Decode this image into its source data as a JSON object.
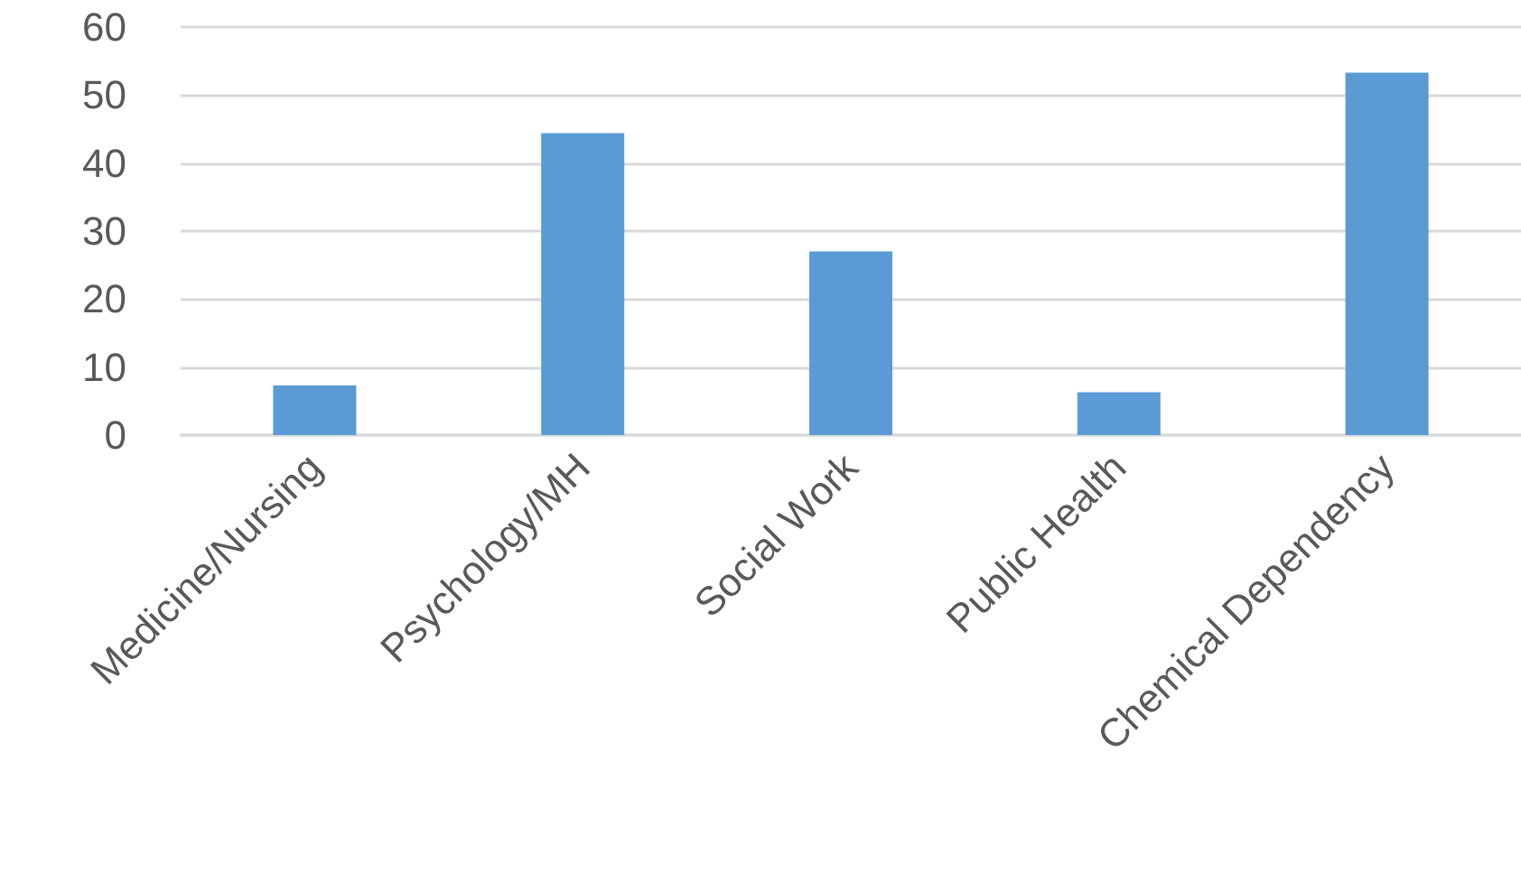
{
  "chart_data": {
    "type": "bar",
    "categories": [
      "Medicine/Nursing",
      "Psychology/MH",
      "Social Work",
      "Public Health",
      "Chemical Dependency"
    ],
    "values": [
      7.3,
      44.4,
      27.0,
      6.3,
      53.3
    ],
    "color": "#5b9bd5",
    "ylim": [
      0,
      60
    ],
    "yticks": [
      0,
      10,
      20,
      30,
      40,
      50,
      60
    ],
    "grid": true
  }
}
